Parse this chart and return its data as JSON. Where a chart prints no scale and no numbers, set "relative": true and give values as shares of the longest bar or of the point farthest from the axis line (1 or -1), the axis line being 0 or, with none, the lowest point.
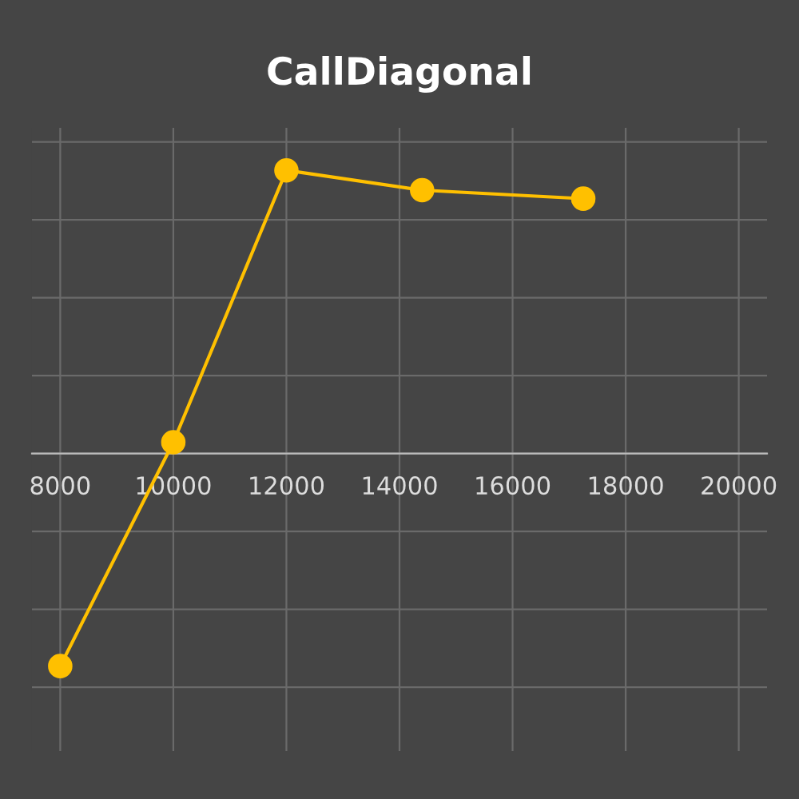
{
  "chart_data": {
    "type": "line",
    "title": "CallDiagonal",
    "relative": true,
    "x": [
      8000,
      10000,
      12000,
      14400,
      17250
    ],
    "series": [
      {
        "color": "#ffc000",
        "values": [
          -0.75,
          0.04,
          1,
          0.93,
          0.9
        ]
      }
    ],
    "xlim": [
      7500,
      20500
    ],
    "xticks": [
      8000,
      10000,
      12000,
      14000,
      16000,
      18000,
      20000
    ],
    "grid": true,
    "marker": "circle",
    "line_style": "solid"
  }
}
